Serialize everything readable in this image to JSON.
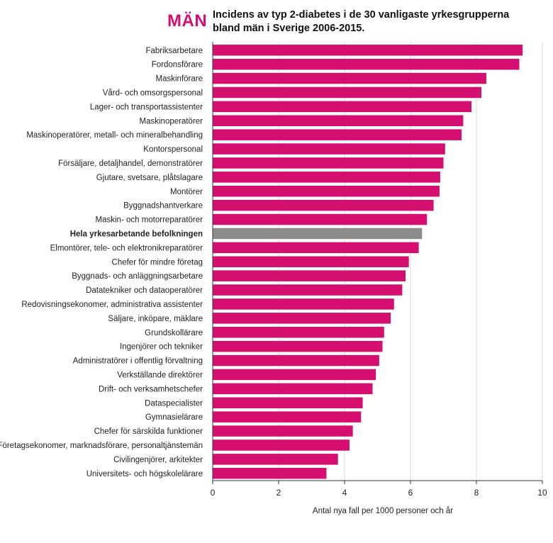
{
  "header": {
    "tag": "MÄN",
    "title": "Incidens av typ 2-diabetes i de 30 vanligaste yrkesgrupperna bland män i Sverige 2006-2015."
  },
  "colors": {
    "accent": "#d40f6f",
    "bar": "#d40f6f",
    "highlight_bar": "#8c8c8c",
    "grid": "#d9d9d9"
  },
  "chart_data": {
    "type": "bar",
    "orientation": "horizontal",
    "xlabel": "Antal nya fall per 1000 personer och år",
    "ylabel": "",
    "xlim": [
      0,
      10
    ],
    "xticks": [
      0,
      2,
      4,
      6,
      8,
      10
    ],
    "grid": true,
    "categories": [
      "Fabriksarbetare",
      "Fordonsförare",
      "Maskinförare",
      "Vård- och omsorgspersonal",
      "Lager- och transportassistenter",
      "Maskinoperatörer",
      "Maskinoperatörer, metall- och mineralbehandling",
      "Kontorspersonal",
      "Försäljare, detaljhandel, demonstratörer",
      "Gjutare, svetsare, plåtslagare",
      "Montörer",
      "Byggnadshantverkare",
      "Maskin- och motorreparatörer",
      "Hela yrkesarbetande befolkningen",
      "Elmontörer, tele- och elektronikreparatörer",
      "Chefer för mindre företag",
      "Byggnads- och anläggningsarbetare",
      "Datatekniker och dataoperatörer",
      "Redovisningsekonomer, administrativa assistenter",
      "Säljare, inköpare, mäklare",
      "Grundskollärare",
      "Ingenjörer och tekniker",
      "Administratörer i offentlig förvaltning",
      "Verkställande direktörer",
      "Drift- och verksamhetschefer",
      "Dataspecialister",
      "Gymnasielärare",
      "Chefer för särskilda funktioner",
      "Företagsekonomer, marknadsförare, personaltjänstemän",
      "Civilingenjörer, arkitekter",
      "Universitets- och högskolelärare"
    ],
    "values": [
      9.4,
      9.3,
      8.3,
      8.15,
      7.85,
      7.6,
      7.55,
      7.05,
      7.0,
      6.9,
      6.88,
      6.7,
      6.5,
      6.35,
      6.25,
      5.95,
      5.85,
      5.75,
      5.5,
      5.4,
      5.2,
      5.15,
      5.05,
      4.95,
      4.85,
      4.55,
      4.5,
      4.25,
      4.15,
      3.8,
      3.45
    ],
    "highlight_index": 13
  }
}
